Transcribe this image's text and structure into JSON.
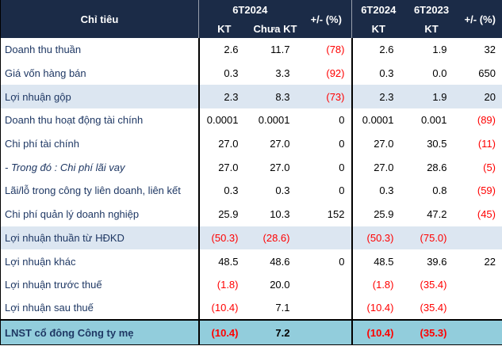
{
  "colors": {
    "header_bg": "#1B2B47",
    "header_text": "#FFFFFF",
    "label_navy": "#1F3864",
    "negative_red": "#FF0000",
    "row_highlight_blue": "#DCE6F1",
    "row_total_cyan": "#92CDDC",
    "border_black": "#000000"
  },
  "header": {
    "criteria": "Chỉ tiêu",
    "group_period": "6T2024",
    "sub_audited": "KT",
    "sub_unaudited": "Chưa KT",
    "change_left": "+/- (%)",
    "col5_line1": "6T2024",
    "col5_line2": "KT",
    "col6_line1": "6T2023",
    "col6_line2": "KT",
    "change_right": "+/- (%)"
  },
  "rows": [
    {
      "label": "Doanh thu thuần",
      "style": "plain",
      "italic": false,
      "values": [
        "2.6",
        "11.7",
        "(78)",
        "2.6",
        "1.9",
        "32"
      ]
    },
    {
      "label": "Giá vốn hàng bán",
      "style": "plain",
      "italic": false,
      "values": [
        "0.3",
        "3.3",
        "(92)",
        "0.3",
        "0.0",
        "650"
      ]
    },
    {
      "label": "Lợi nhuận gộp",
      "style": "highlight",
      "italic": false,
      "values": [
        "2.3",
        "8.3",
        "(73)",
        "2.3",
        "1.9",
        "20"
      ]
    },
    {
      "label": "Doanh thu hoạt động tài chính",
      "style": "plain",
      "italic": false,
      "values": [
        "0.0001",
        "0.0001",
        "0",
        "0.0001",
        "0.001",
        "(89)"
      ]
    },
    {
      "label": "Chi phí tài chính",
      "style": "plain",
      "italic": false,
      "values": [
        "27.0",
        "27.0",
        "0",
        "27.0",
        "30.5",
        "(11)"
      ]
    },
    {
      "label": "- Trong đó : Chi phí lãi vay",
      "style": "plain",
      "italic": true,
      "values": [
        "27.0",
        "27.0",
        "0",
        "27.0",
        "28.6",
        "(5)"
      ]
    },
    {
      "label": "Lãi/lỗ trong công ty liên doanh, liên kết",
      "style": "plain",
      "italic": false,
      "values": [
        "0.3",
        "0.3",
        "0",
        "0.3",
        "0.8",
        "(59)"
      ]
    },
    {
      "label": "Chi phí quản lý doanh nghiệp",
      "style": "plain",
      "italic": false,
      "values": [
        "25.9",
        "10.3",
        "152",
        "25.9",
        "47.2",
        "(45)"
      ]
    },
    {
      "label": "Lợi nhuận thuần từ HĐKD",
      "style": "highlight",
      "italic": false,
      "values": [
        "(50.3)",
        "(28.6)",
        "",
        "(50.3)",
        "(75.0)",
        ""
      ]
    },
    {
      "label": "Lợi nhuận khác",
      "style": "plain",
      "italic": false,
      "values": [
        "48.5",
        "48.6",
        "0",
        "48.5",
        "39.6",
        "22"
      ]
    },
    {
      "label": "Lợi nhuận trước thuế",
      "style": "plain",
      "italic": false,
      "values": [
        "(1.8)",
        "20.0",
        "",
        "(1.8)",
        "(35.4)",
        ""
      ]
    },
    {
      "label": "Lợi nhuận sau thuế",
      "style": "plain",
      "italic": false,
      "values": [
        "(10.4)",
        "7.1",
        "",
        "(10.4)",
        "(35.4)",
        ""
      ]
    },
    {
      "label": "LNST cổ đông Công ty mẹ",
      "style": "total",
      "italic": false,
      "values": [
        "(10.4)",
        "7.2",
        "",
        "(10.4)",
        "(35.3)",
        ""
      ]
    }
  ]
}
